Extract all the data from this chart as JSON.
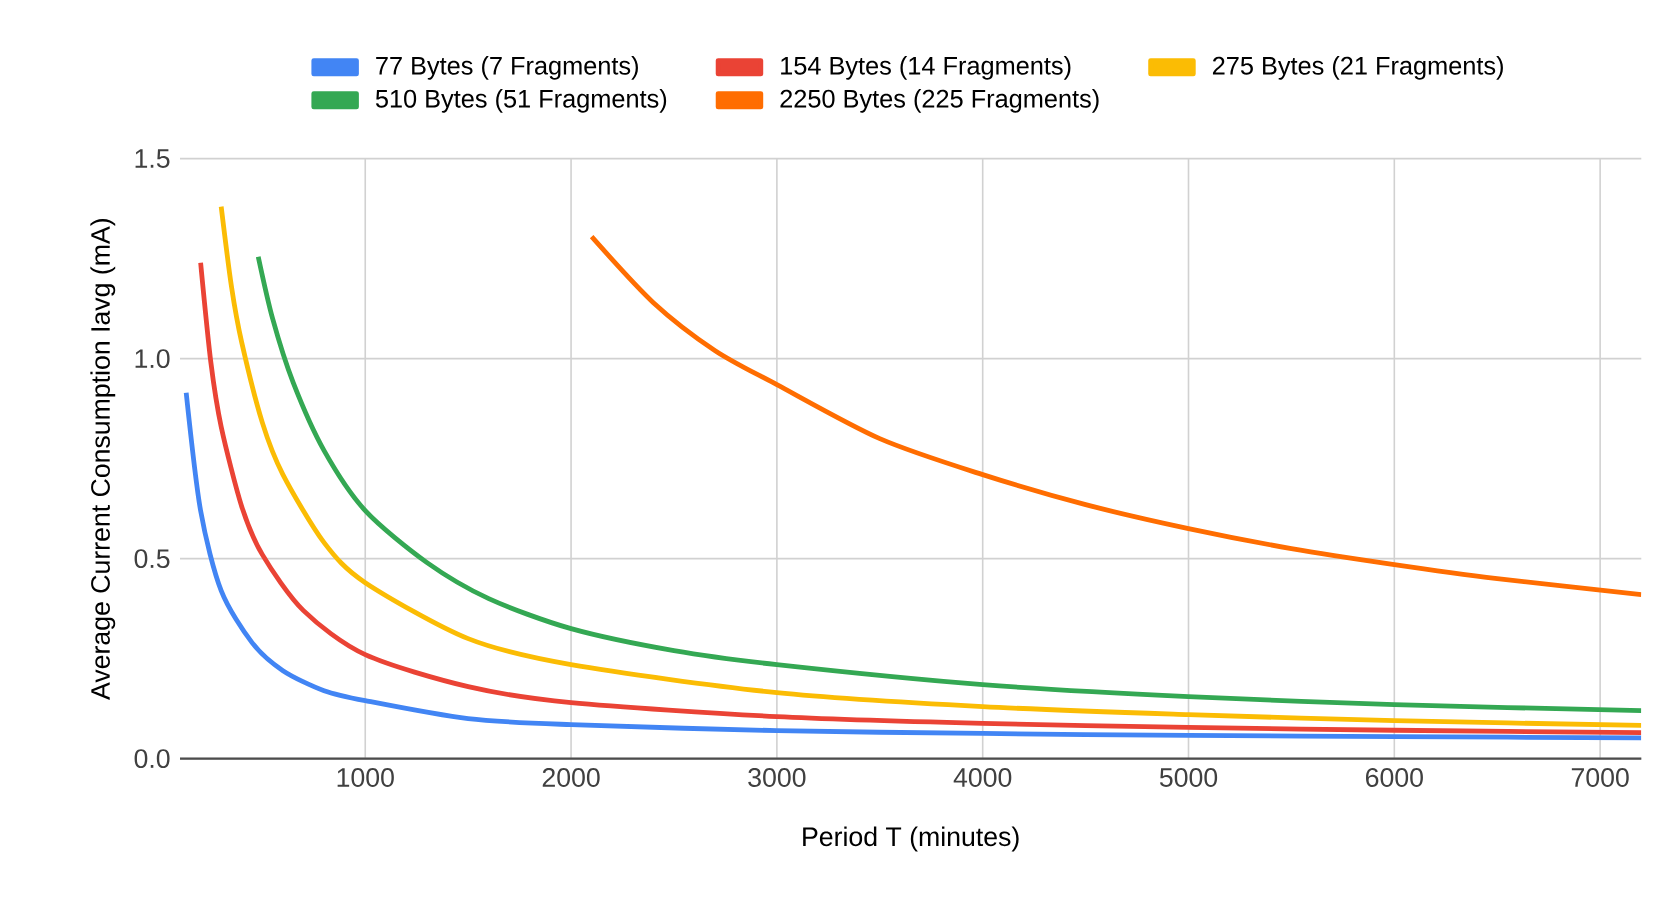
{
  "chart_data": {
    "type": "line",
    "xlabel": "Period T (minutes)",
    "ylabel": "Average Current Consumption Iavg (mA)",
    "xlim": [
      100,
      7200
    ],
    "xticks": [
      1000,
      2000,
      3000,
      4000,
      5000,
      6000,
      7000
    ],
    "ylim": [
      0,
      1.5
    ],
    "yticks": [
      {
        "value": 0,
        "label": "0.0"
      },
      0.5,
      {
        "value": 1,
        "label": "1.0"
      },
      1.5
    ],
    "grid": true,
    "legend": "top",
    "series": [
      {
        "name": "77 Bytes (7 Fragments)",
        "color": "#4285f4",
        "x": [
          130,
          200,
          300,
          450,
          600,
          800,
          1000,
          1500,
          2000,
          3000,
          4000,
          5000,
          6000,
          7200
        ],
        "values": [
          0.915,
          0.62,
          0.42,
          0.29,
          0.22,
          0.17,
          0.145,
          0.1,
          0.085,
          0.07,
          0.063,
          0.058,
          0.055,
          0.052
        ]
      },
      {
        "name": "154 Bytes (14 Fragments)",
        "color": "#ea4335",
        "x": [
          200,
          250,
          300,
          400,
          500,
          700,
          1000,
          1500,
          2000,
          3000,
          4000,
          5000,
          6000,
          7200
        ],
        "values": [
          1.24,
          0.99,
          0.83,
          0.63,
          0.51,
          0.37,
          0.26,
          0.18,
          0.14,
          0.105,
          0.088,
          0.078,
          0.071,
          0.065
        ]
      },
      {
        "name": "275 Bytes (21 Fragments)",
        "color": "#fbbc04",
        "x": [
          300,
          350,
          400,
          500,
          600,
          800,
          1000,
          1500,
          2000,
          3000,
          4000,
          5000,
          6000,
          7200
        ],
        "values": [
          1.38,
          1.18,
          1.04,
          0.84,
          0.71,
          0.54,
          0.44,
          0.3,
          0.235,
          0.165,
          0.13,
          0.11,
          0.095,
          0.083
        ]
      },
      {
        "name": "510 Bytes (51 Fragments)",
        "color": "#34a853",
        "x": [
          480,
          550,
          650,
          800,
          1000,
          1300,
          1600,
          2000,
          2500,
          3000,
          4000,
          5000,
          6000,
          7200
        ],
        "values": [
          1.255,
          1.1,
          0.94,
          0.77,
          0.62,
          0.49,
          0.4,
          0.325,
          0.27,
          0.235,
          0.185,
          0.155,
          0.135,
          0.12
        ]
      },
      {
        "name": "2250 Bytes (225 Fragments)",
        "color": "#ff6d01",
        "x": [
          2100,
          2400,
          2700,
          3000,
          3500,
          4000,
          4500,
          5000,
          5500,
          6000,
          6500,
          7200
        ],
        "values": [
          1.305,
          1.14,
          1.02,
          0.935,
          0.8,
          0.71,
          0.635,
          0.575,
          0.525,
          0.485,
          0.45,
          0.41
        ]
      }
    ]
  }
}
